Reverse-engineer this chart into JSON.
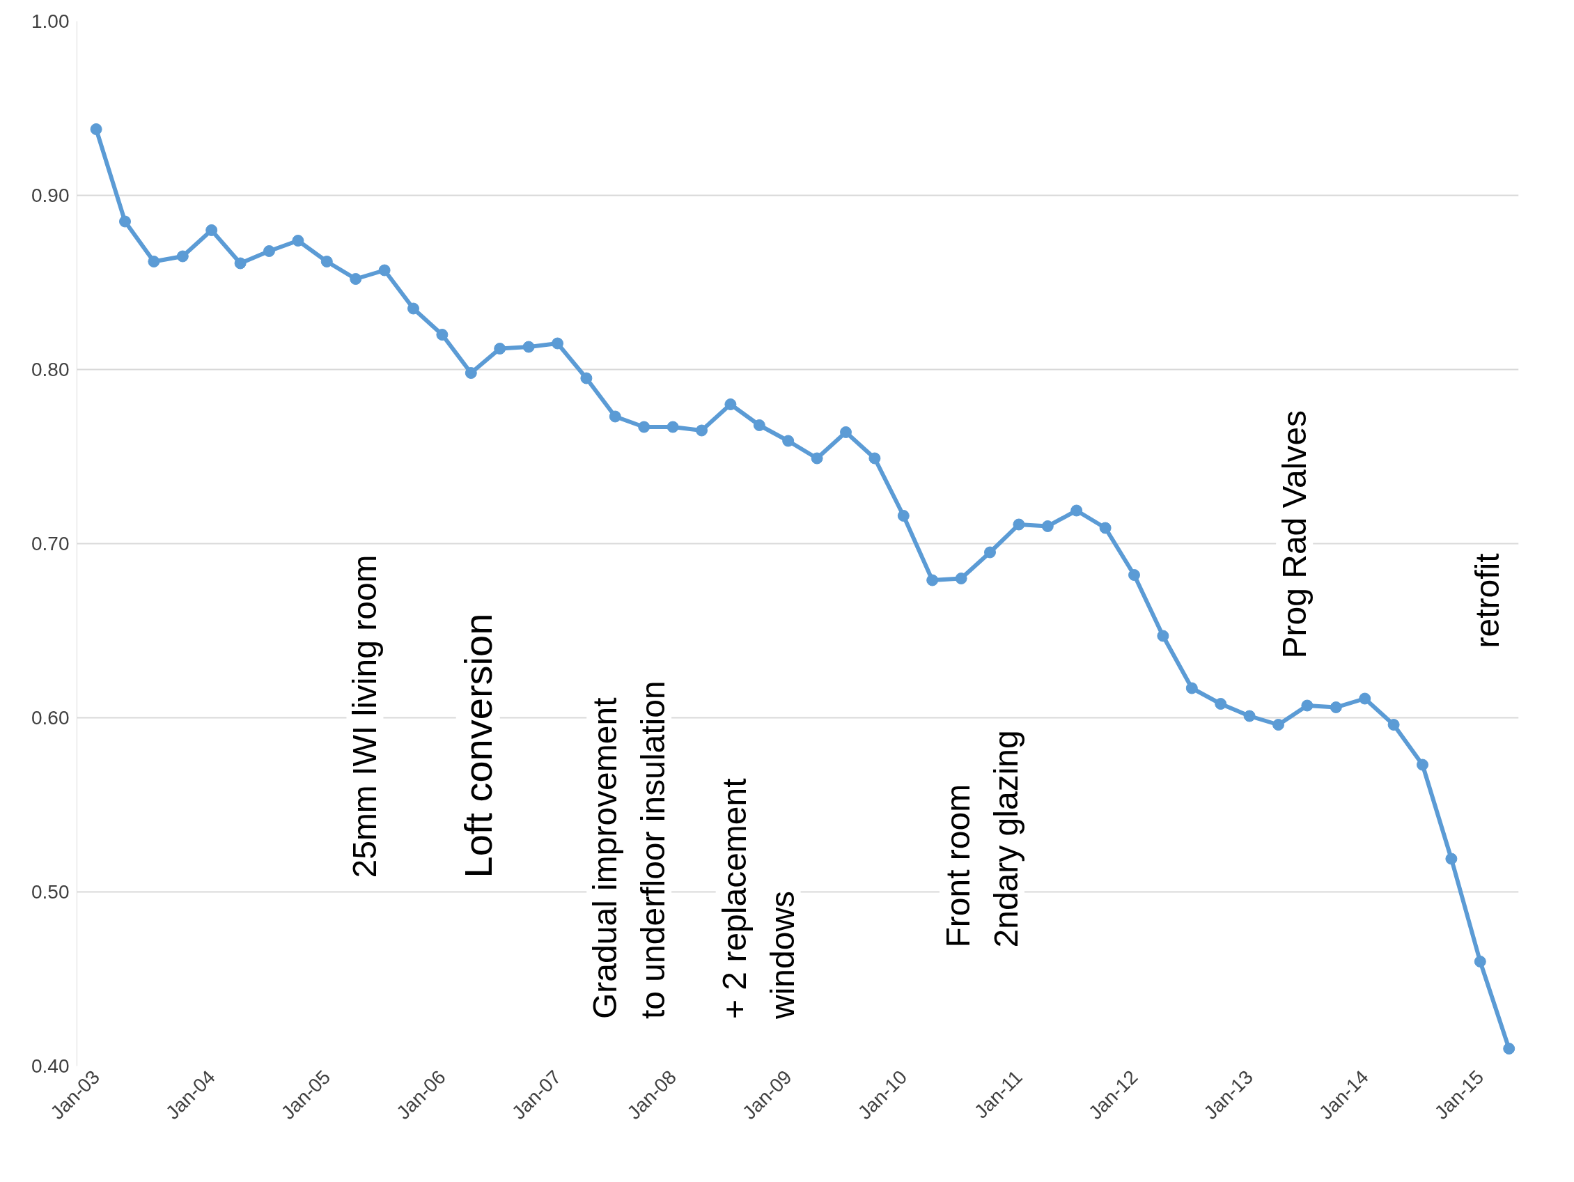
{
  "chart_data": {
    "type": "line",
    "marker": "circle",
    "line_style": "solid",
    "grid": "y",
    "x": [
      "2003-01",
      "2003-04",
      "2003-07",
      "2003-10",
      "2004-01",
      "2004-04",
      "2004-07",
      "2004-10",
      "2005-01",
      "2005-04",
      "2005-07",
      "2005-10",
      "2006-01",
      "2006-04",
      "2006-07",
      "2006-10",
      "2007-01",
      "2007-04",
      "2007-07",
      "2007-10",
      "2008-01",
      "2008-04",
      "2008-07",
      "2008-10",
      "2009-01",
      "2009-04",
      "2009-07",
      "2009-10",
      "2010-01",
      "2010-04",
      "2010-07",
      "2010-10",
      "2011-01",
      "2011-04",
      "2011-07",
      "2011-10",
      "2012-01",
      "2012-04",
      "2012-07",
      "2012-10",
      "2013-01",
      "2013-04",
      "2013-07",
      "2013-10",
      "2014-01",
      "2014-04",
      "2014-07",
      "2014-10",
      "2015-01",
      "2015-04"
    ],
    "series": [
      {
        "color": "#5b9bd5",
        "values": [
          0.938,
          0.885,
          0.862,
          0.865,
          0.88,
          0.861,
          0.868,
          0.874,
          0.862,
          0.852,
          0.857,
          0.835,
          0.82,
          0.798,
          0.812,
          0.813,
          0.815,
          0.795,
          0.773,
          0.767,
          0.767,
          0.765,
          0.78,
          0.768,
          0.759,
          0.749,
          0.764,
          0.749,
          0.716,
          0.679,
          0.68,
          0.695,
          0.711,
          0.71,
          0.719,
          0.709,
          0.682,
          0.647,
          0.617,
          0.608,
          0.601,
          0.596,
          0.607,
          0.606,
          0.611,
          0.596,
          0.573,
          0.519,
          0.46,
          0.41
        ]
      }
    ],
    "ylim": [
      0.4,
      1.0
    ],
    "yticks": [
      {
        "value": 0.4,
        "label": "0.40"
      },
      {
        "value": 0.5,
        "label": "0.50"
      },
      {
        "value": 0.6,
        "label": "0.60"
      },
      {
        "value": 0.7,
        "label": "0.70"
      },
      {
        "value": 0.8,
        "label": "0.80"
      },
      {
        "value": 0.9,
        "label": "0.90"
      },
      {
        "value": 1.0,
        "label": "1.00"
      }
    ],
    "xlim": [
      "2002-11",
      "2015-05"
    ],
    "xticks": [
      {
        "value": "2003-01",
        "label": "Jan-03"
      },
      {
        "value": "2004-01",
        "label": "Jan-04"
      },
      {
        "value": "2005-01",
        "label": "Jan-05"
      },
      {
        "value": "2006-01",
        "label": "Jan-06"
      },
      {
        "value": "2007-01",
        "label": "Jan-07"
      },
      {
        "value": "2008-01",
        "label": "Jan-08"
      },
      {
        "value": "2009-01",
        "label": "Jan-09"
      },
      {
        "value": "2010-01",
        "label": "Jan-10"
      },
      {
        "value": "2011-01",
        "label": "Jan-11"
      },
      {
        "value": "2012-01",
        "label": "Jan-12"
      },
      {
        "value": "2013-01",
        "label": "Jan-13"
      },
      {
        "value": "2014-01",
        "label": "Jan-14"
      },
      {
        "value": "2015-01",
        "label": "Jan-15"
      }
    ],
    "annotations": [
      "25mm IWI living room",
      "Loft conversion",
      "Gradual improvement\nto underfloor insulation",
      "+ 2 replacement\nwindows",
      "Front room\n2ndary glazing",
      "Prog Rad Valves",
      "retrofit"
    ]
  }
}
